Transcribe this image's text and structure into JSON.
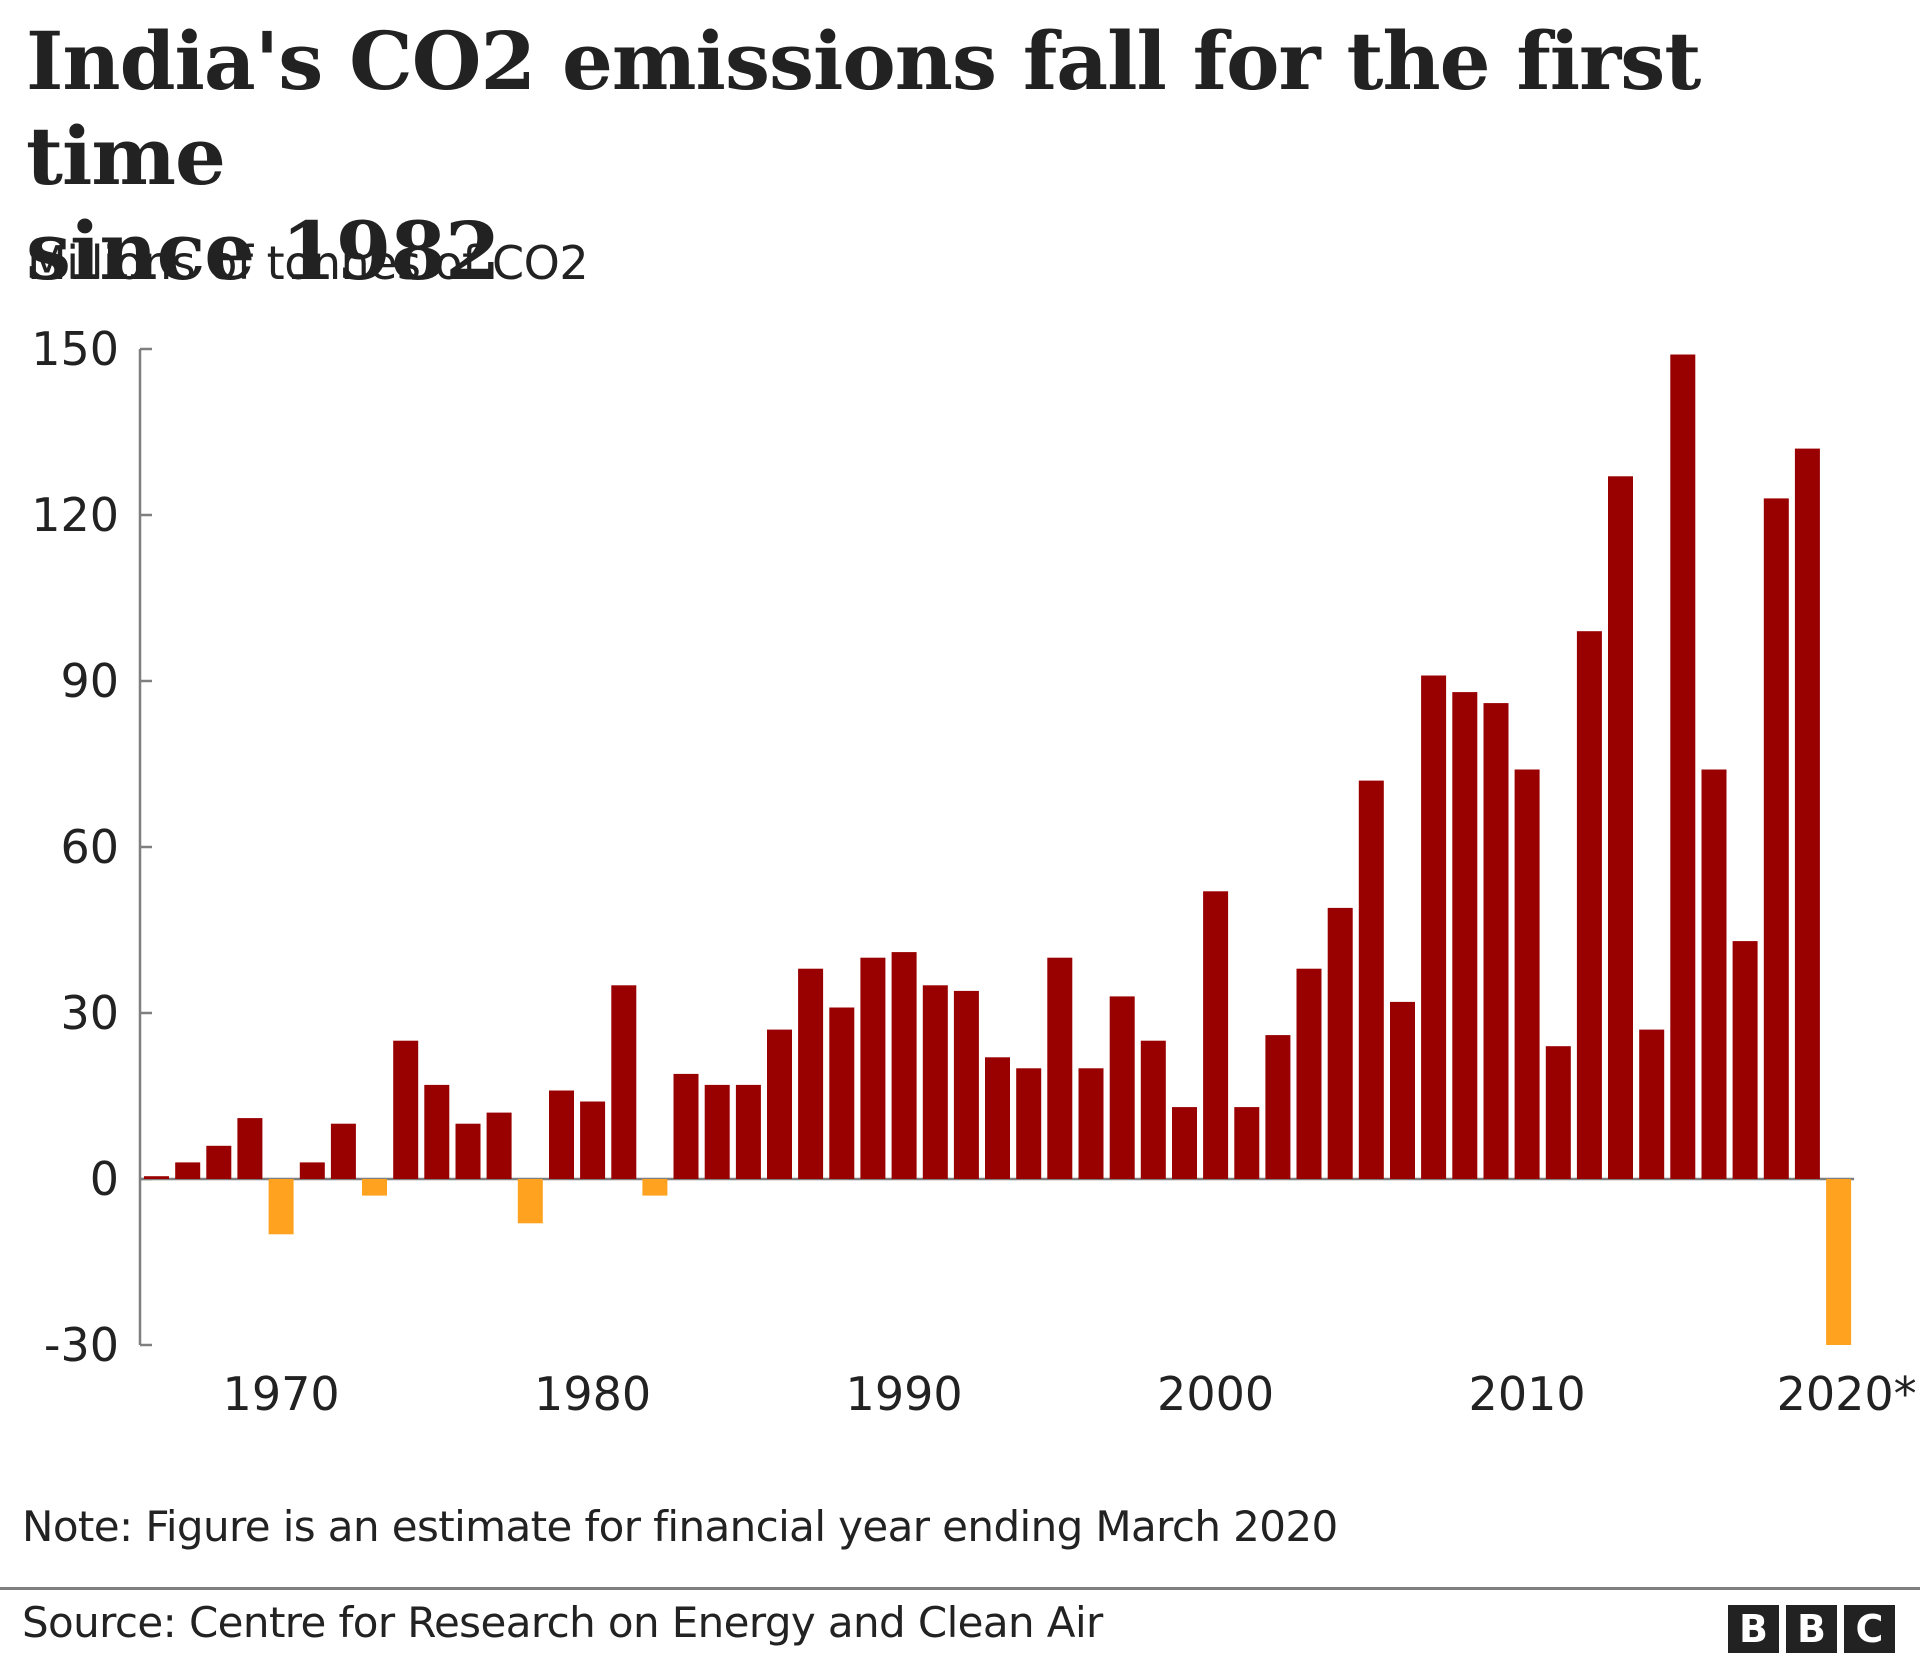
{
  "chart_data": {
    "type": "bar",
    "title": "India's CO2 emissions fall for the first time since 1982",
    "title_lines": [
      "India's CO2 emissions fall for the first time",
      "since 1982"
    ],
    "subtitle": "Millions of tonnes of CO2",
    "xlabel": "",
    "ylabel": "Millions of tonnes of CO2",
    "ylim": [
      -30,
      150
    ],
    "yticks": [
      150,
      120,
      90,
      60,
      30,
      0,
      -30
    ],
    "xtick_labels": [
      {
        "year": 1970,
        "label": "1970"
      },
      {
        "year": 1980,
        "label": "1980"
      },
      {
        "year": 1990,
        "label": "1990"
      },
      {
        "year": 2000,
        "label": "2000"
      },
      {
        "year": 2010,
        "label": "2010"
      },
      {
        "year": 2020,
        "label": "2020*"
      }
    ],
    "grid": false,
    "legend": "none",
    "colors": {
      "increase": "#990000",
      "decrease": "#FFA220",
      "axis": "#7f7f7f"
    },
    "categories": [
      1966,
      1967,
      1968,
      1969,
      1970,
      1971,
      1972,
      1973,
      1974,
      1975,
      1976,
      1977,
      1978,
      1979,
      1980,
      1981,
      1982,
      1983,
      1984,
      1985,
      1986,
      1987,
      1988,
      1989,
      1990,
      1991,
      1992,
      1993,
      1994,
      1995,
      1996,
      1997,
      1998,
      1999,
      2000,
      2001,
      2002,
      2003,
      2004,
      2005,
      2006,
      2007,
      2008,
      2009,
      2010,
      2011,
      2012,
      2013,
      2014,
      2015,
      2016,
      2017,
      2018,
      2019,
      2020
    ],
    "values": [
      0.5,
      3,
      6,
      11,
      -10,
      3,
      10,
      -3,
      25,
      17,
      10,
      12,
      -8,
      16,
      14,
      35,
      -3,
      19,
      17,
      17,
      27,
      38,
      31,
      40,
      41,
      35,
      34,
      22,
      20,
      40,
      20,
      33,
      25,
      13,
      52,
      13,
      26,
      38,
      49,
      72,
      32,
      91,
      88,
      86,
      74,
      24,
      99,
      127,
      27,
      149,
      74,
      43,
      123,
      132,
      -30
    ]
  },
  "note": "Note: Figure is an estimate for financial year ending March 2020",
  "source": "Source: Centre for Research on Energy and Clean Air",
  "logo": {
    "letters": [
      "B",
      "B",
      "C"
    ]
  }
}
